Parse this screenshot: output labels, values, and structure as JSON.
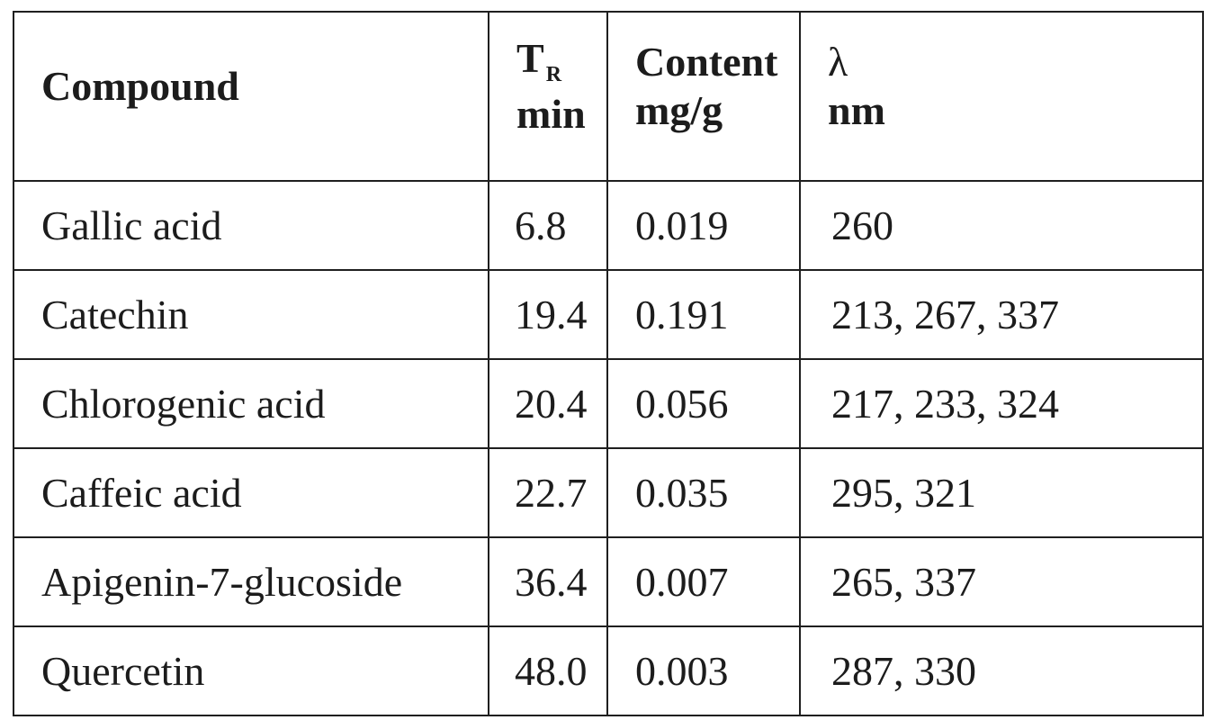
{
  "table": {
    "header": {
      "compound": "Compound",
      "tr_symbol": "T",
      "tr_subscript": "R",
      "tr_unit": "min",
      "content_label": "Content",
      "content_unit": "mg/g",
      "lambda_symbol": "λ",
      "lambda_unit": "nm"
    },
    "rows": [
      {
        "compound": "Gallic acid",
        "tr": "6.8",
        "content": "0.019",
        "lambda": "260"
      },
      {
        "compound": "Catechin",
        "tr": "19.4",
        "content": "0.191",
        "lambda": "213, 267, 337"
      },
      {
        "compound": "Chlorogenic acid",
        "tr": "20.4",
        "content": "0.056",
        "lambda": "217, 233, 324"
      },
      {
        "compound": "Caffeic acid",
        "tr": "22.7",
        "content": "0.035",
        "lambda": "295, 321"
      },
      {
        "compound": "Apigenin-7-glucoside",
        "tr": "36.4",
        "content": "0.007",
        "lambda": "265, 337"
      },
      {
        "compound": "Quercetin",
        "tr": "48.0",
        "content": "0.003",
        "lambda": "287, 330"
      }
    ]
  }
}
